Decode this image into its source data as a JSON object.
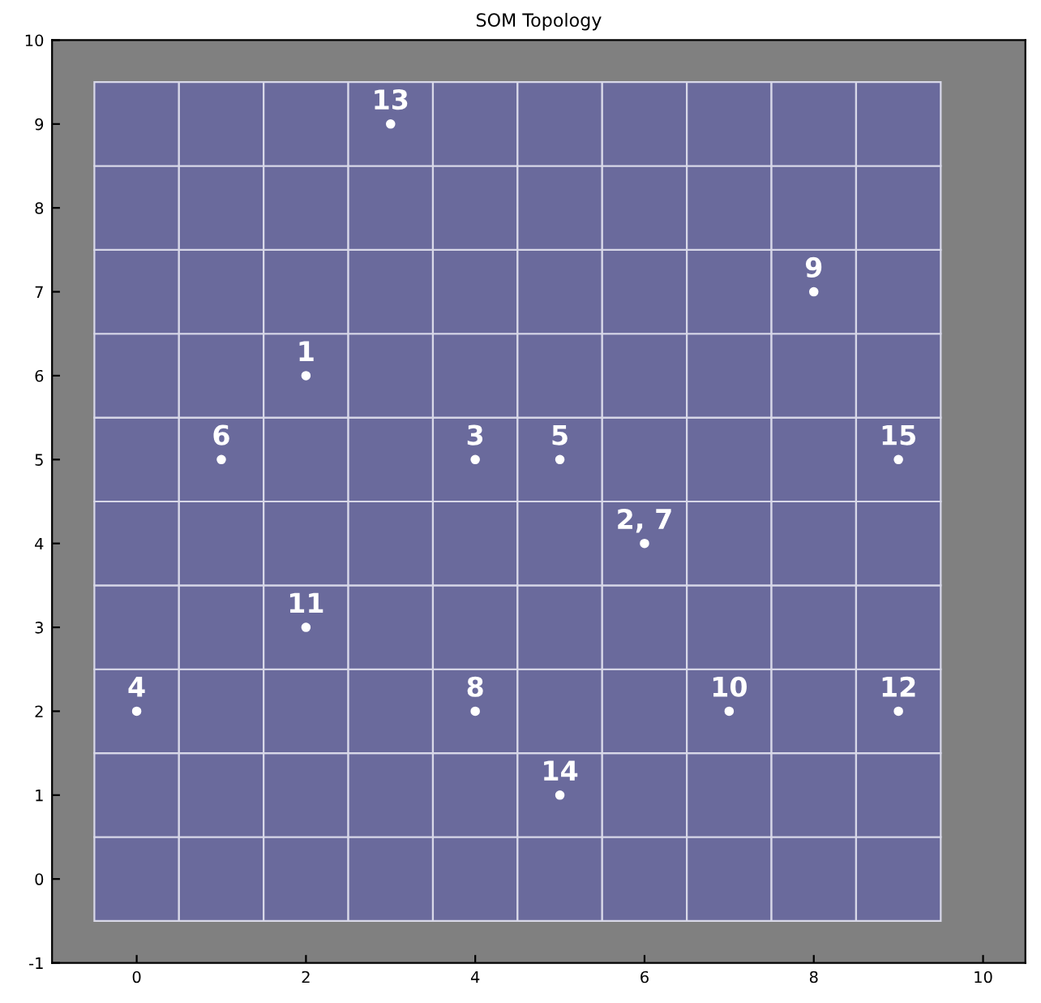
{
  "chart_data": {
    "type": "scatter",
    "title": "SOM Topology",
    "x": [
      3,
      8,
      2,
      1,
      4,
      5,
      9,
      6,
      2,
      0,
      4,
      7,
      9,
      5
    ],
    "values": [
      9,
      7,
      6,
      5,
      5,
      5,
      5,
      4,
      3,
      2,
      2,
      2,
      2,
      1
    ],
    "annotations": [
      {
        "text": "13",
        "x": 3,
        "y": 9
      },
      {
        "text": "9",
        "x": 8,
        "y": 7
      },
      {
        "text": "1",
        "x": 2,
        "y": 6
      },
      {
        "text": "6",
        "x": 1,
        "y": 5
      },
      {
        "text": "3",
        "x": 4,
        "y": 5
      },
      {
        "text": "5",
        "x": 5,
        "y": 5
      },
      {
        "text": "15",
        "x": 9,
        "y": 5
      },
      {
        "text": "2, 7",
        "x": 6,
        "y": 4
      },
      {
        "text": "11",
        "x": 2,
        "y": 3
      },
      {
        "text": "4",
        "x": 0,
        "y": 2
      },
      {
        "text": "8",
        "x": 4,
        "y": 2
      },
      {
        "text": "10",
        "x": 7,
        "y": 2
      },
      {
        "text": "12",
        "x": 9,
        "y": 2
      },
      {
        "text": "14",
        "x": 5,
        "y": 1
      }
    ],
    "marker": "circle",
    "color": "#ffffff",
    "xlim": [
      -1,
      10.5
    ],
    "ylim": [
      -1,
      10
    ],
    "xticks": [
      0,
      2,
      4,
      6,
      8,
      10
    ],
    "yticks": [
      -1,
      0,
      1,
      2,
      3,
      4,
      5,
      6,
      7,
      8,
      9,
      10
    ],
    "grid": false
  }
}
